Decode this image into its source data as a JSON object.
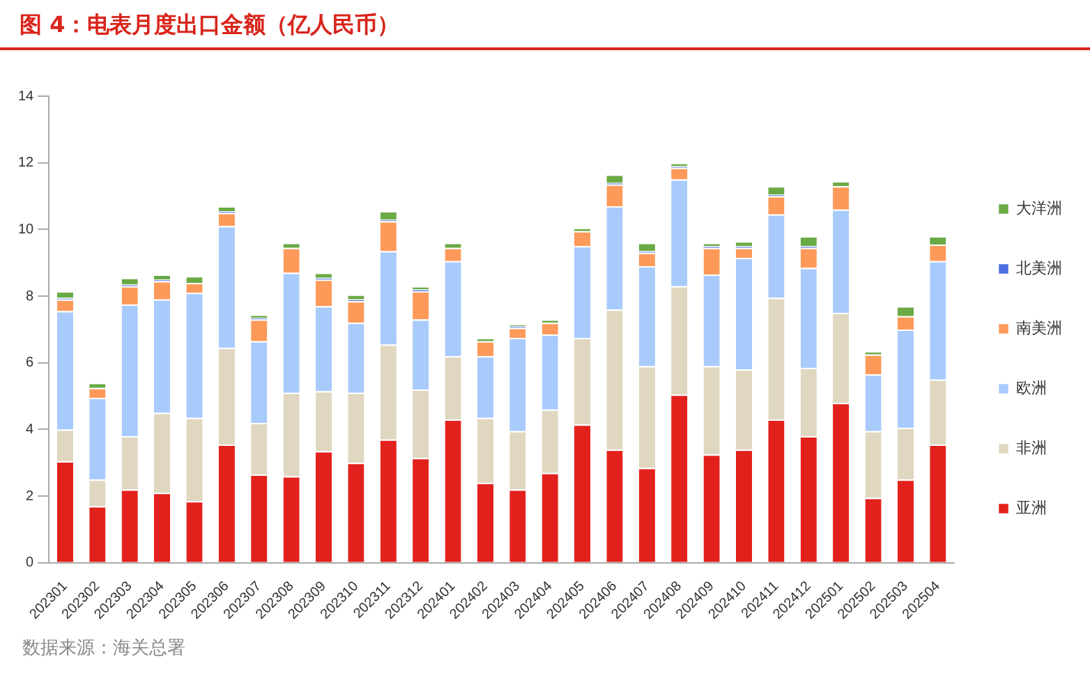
{
  "chart_data": {
    "type": "bar",
    "title": "图 4：电表月度出口金额（亿人民币）",
    "annotations": [
      "数据来源：海关总署"
    ],
    "categories": [
      "202301",
      "202302",
      "202303",
      "202304",
      "202305",
      "202306",
      "202307",
      "202308",
      "202309",
      "202310",
      "202311",
      "202312",
      "202401",
      "202402",
      "202403",
      "202404",
      "202405",
      "202406",
      "202407",
      "202408",
      "202409",
      "202410",
      "202411",
      "202412",
      "202501",
      "202502",
      "202503",
      "202504"
    ],
    "stacked": true,
    "ylim": [
      0,
      14
    ],
    "yticks": [
      0,
      2,
      4,
      6,
      8,
      10,
      12,
      14
    ],
    "grid": false,
    "legend": "right",
    "series": [
      {
        "name": "亚洲",
        "color": "#e3211c",
        "values": [
          3.05,
          1.7,
          2.2,
          2.1,
          1.85,
          3.55,
          2.65,
          2.6,
          3.35,
          3.0,
          3.7,
          3.15,
          4.3,
          2.4,
          2.2,
          2.7,
          4.15,
          3.4,
          2.85,
          5.05,
          3.25,
          3.4,
          4.3,
          3.8,
          4.8,
          1.95,
          2.5,
          3.55
        ]
      },
      {
        "name": "非洲",
        "color": "#e0d7c0",
        "values": [
          0.95,
          0.8,
          1.6,
          2.4,
          2.5,
          2.9,
          1.55,
          2.5,
          1.8,
          2.1,
          2.85,
          2.05,
          1.9,
          1.95,
          1.75,
          1.9,
          2.6,
          4.2,
          3.05,
          3.25,
          2.65,
          2.4,
          3.65,
          2.05,
          2.7,
          2.0,
          1.55,
          1.95
        ]
      },
      {
        "name": "欧洲",
        "color": "#a8cbfc",
        "values": [
          3.55,
          2.45,
          3.95,
          3.4,
          3.75,
          3.65,
          2.45,
          3.6,
          2.55,
          2.1,
          2.8,
          2.1,
          2.85,
          1.85,
          2.8,
          2.25,
          2.75,
          3.1,
          3.0,
          3.2,
          2.75,
          3.35,
          2.5,
          3.0,
          3.1,
          1.7,
          2.95,
          3.55
        ]
      },
      {
        "name": "南美洲",
        "color": "#fd9a5a",
        "values": [
          0.35,
          0.3,
          0.55,
          0.55,
          0.3,
          0.4,
          0.65,
          0.75,
          0.8,
          0.65,
          0.9,
          0.85,
          0.4,
          0.45,
          0.3,
          0.35,
          0.45,
          0.65,
          0.4,
          0.35,
          0.8,
          0.3,
          0.55,
          0.6,
          0.7,
          0.6,
          0.4,
          0.5
        ]
      },
      {
        "name": "北美洲",
        "color": "#4a6fe3",
        "values": [
          0.05,
          0,
          0.05,
          0.05,
          0,
          0.05,
          0.05,
          0,
          0.05,
          0.05,
          0.05,
          0.05,
          0,
          0,
          0.05,
          0,
          0,
          0.05,
          0.05,
          0.05,
          0.05,
          0.05,
          0.05,
          0.05,
          0,
          0,
          0,
          0
        ]
      },
      {
        "name": "大洋洲",
        "color": "#6aaa45",
        "values": [
          0.2,
          0.15,
          0.2,
          0.15,
          0.2,
          0.15,
          0.1,
          0.15,
          0.15,
          0.15,
          0.25,
          0.1,
          0.15,
          0.1,
          0.05,
          0.1,
          0.1,
          0.25,
          0.25,
          0.1,
          0.1,
          0.15,
          0.25,
          0.3,
          0.15,
          0.1,
          0.3,
          0.25
        ]
      }
    ]
  }
}
